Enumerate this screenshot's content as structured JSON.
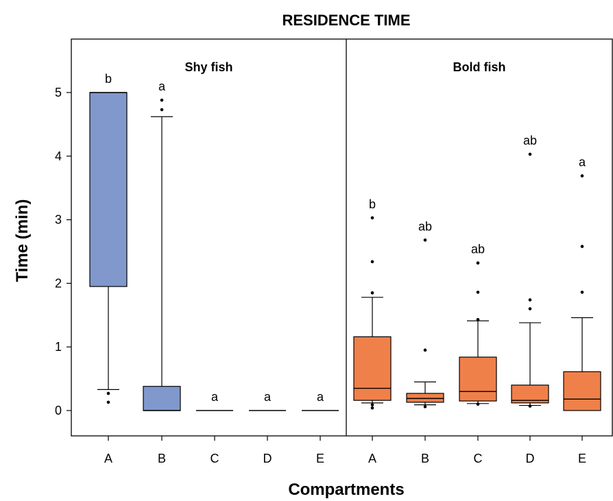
{
  "chart_data": {
    "type": "boxplot",
    "title": "RESIDENCE TIME",
    "xlabel": "Compartments",
    "ylabel": "Time (min)",
    "ylim": [
      -0.4,
      5.8
    ],
    "yticks": [
      0,
      1,
      2,
      3,
      4,
      5
    ],
    "colors": {
      "shy": "#8098cb",
      "bold": "#f0804a"
    },
    "panels": [
      {
        "name": "Shy fish",
        "color": "#8098cb",
        "categories": [
          "A",
          "B",
          "C",
          "D",
          "E"
        ],
        "boxes": [
          {
            "whisker_low": 0.33,
            "q1": 1.95,
            "median": 5.0,
            "q3": 5.0,
            "whisker_high": 5.0,
            "outliers": [
              0.27,
              0.13
            ],
            "letter": "b"
          },
          {
            "whisker_low": 0.0,
            "q1": 0.0,
            "median": 0.0,
            "q3": 0.38,
            "whisker_high": 4.62,
            "outliers": [
              4.73,
              4.88
            ],
            "letter": "a"
          },
          {
            "whisker_low": 0.0,
            "q1": 0.0,
            "median": 0.0,
            "q3": 0.0,
            "whisker_high": 0.0,
            "outliers": [],
            "letter": "a"
          },
          {
            "whisker_low": 0.0,
            "q1": 0.0,
            "median": 0.0,
            "q3": 0.0,
            "whisker_high": 0.0,
            "outliers": [],
            "letter": "a"
          },
          {
            "whisker_low": 0.0,
            "q1": 0.0,
            "median": 0.0,
            "q3": 0.0,
            "whisker_high": 0.0,
            "outliers": [],
            "letter": "a"
          }
        ]
      },
      {
        "name": "Bold fish",
        "color": "#f0804a",
        "categories": [
          "A",
          "B",
          "C",
          "D",
          "E"
        ],
        "boxes": [
          {
            "whisker_low": 0.12,
            "q1": 0.16,
            "median": 0.35,
            "q3": 1.16,
            "whisker_high": 1.78,
            "outliers": [
              0.09,
              0.04,
              1.85,
              2.34,
              3.03
            ],
            "letter": "b"
          },
          {
            "whisker_low": 0.09,
            "q1": 0.13,
            "median": 0.19,
            "q3": 0.27,
            "whisker_high": 0.45,
            "outliers": [
              0.06,
              0.95,
              2.68
            ],
            "letter": "ab"
          },
          {
            "whisker_low": 0.11,
            "q1": 0.15,
            "median": 0.3,
            "q3": 0.84,
            "whisker_high": 1.41,
            "outliers": [
              0.1,
              1.43,
              1.86,
              2.32
            ],
            "letter": "ab"
          },
          {
            "whisker_low": 0.08,
            "q1": 0.12,
            "median": 0.16,
            "q3": 0.4,
            "whisker_high": 1.38,
            "outliers": [
              0.07,
              1.6,
              1.74,
              4.03
            ],
            "letter": "ab"
          },
          {
            "whisker_low": 0.0,
            "q1": 0.0,
            "median": 0.18,
            "q3": 0.61,
            "whisker_high": 1.46,
            "outliers": [
              1.86,
              2.58,
              3.69
            ],
            "letter": "a"
          }
        ]
      }
    ]
  }
}
